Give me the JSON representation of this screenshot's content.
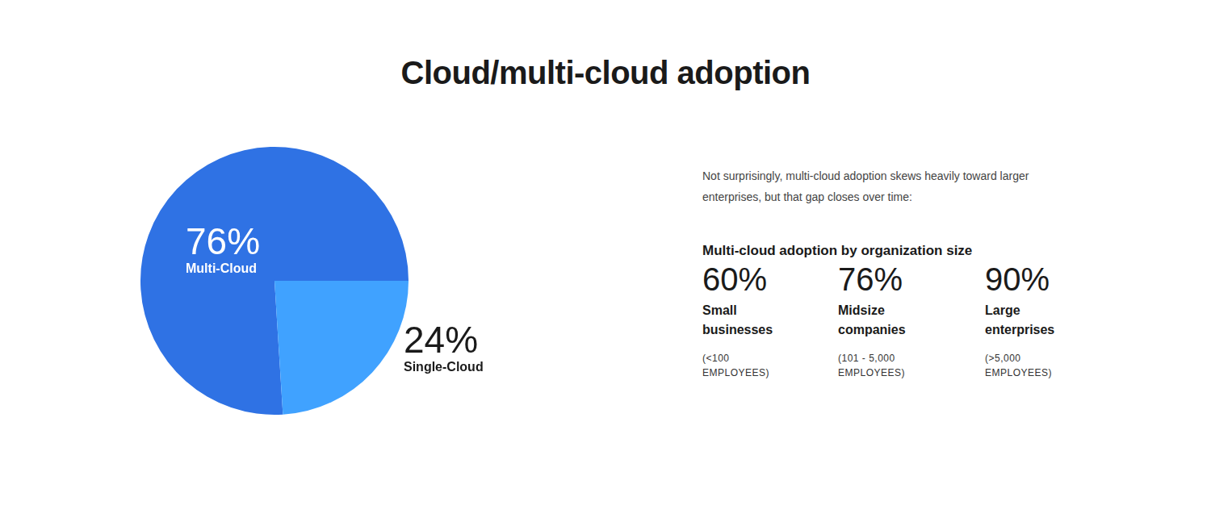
{
  "chart_data": {
    "type": "pie",
    "title": "Cloud/multi-cloud adoption",
    "categories": [
      "Multi-Cloud",
      "Single-Cloud"
    ],
    "values": [
      76,
      24
    ],
    "value_labels": [
      "76%",
      "24%"
    ],
    "colors": [
      "#2f72e4",
      "#40a2ff"
    ],
    "data_labels": true
  },
  "side_panel": {
    "text": "Not surprisingly, multi-cloud adoption skews heavily toward larger enterprises, but that gap closes over time:",
    "heading": "Multi-cloud adoption by organization size",
    "stats": [
      {
        "value": "60%",
        "label": "Small businesses",
        "note": "(<100 EMPLOYEES)"
      },
      {
        "value": "76%",
        "label": "Midsize companies",
        "note": "(101 - 5,000 EMPLOYEES)"
      },
      {
        "value": "90%",
        "label": "Large enterprises",
        "note": "(>5,000 EMPLOYEES)"
      }
    ]
  }
}
